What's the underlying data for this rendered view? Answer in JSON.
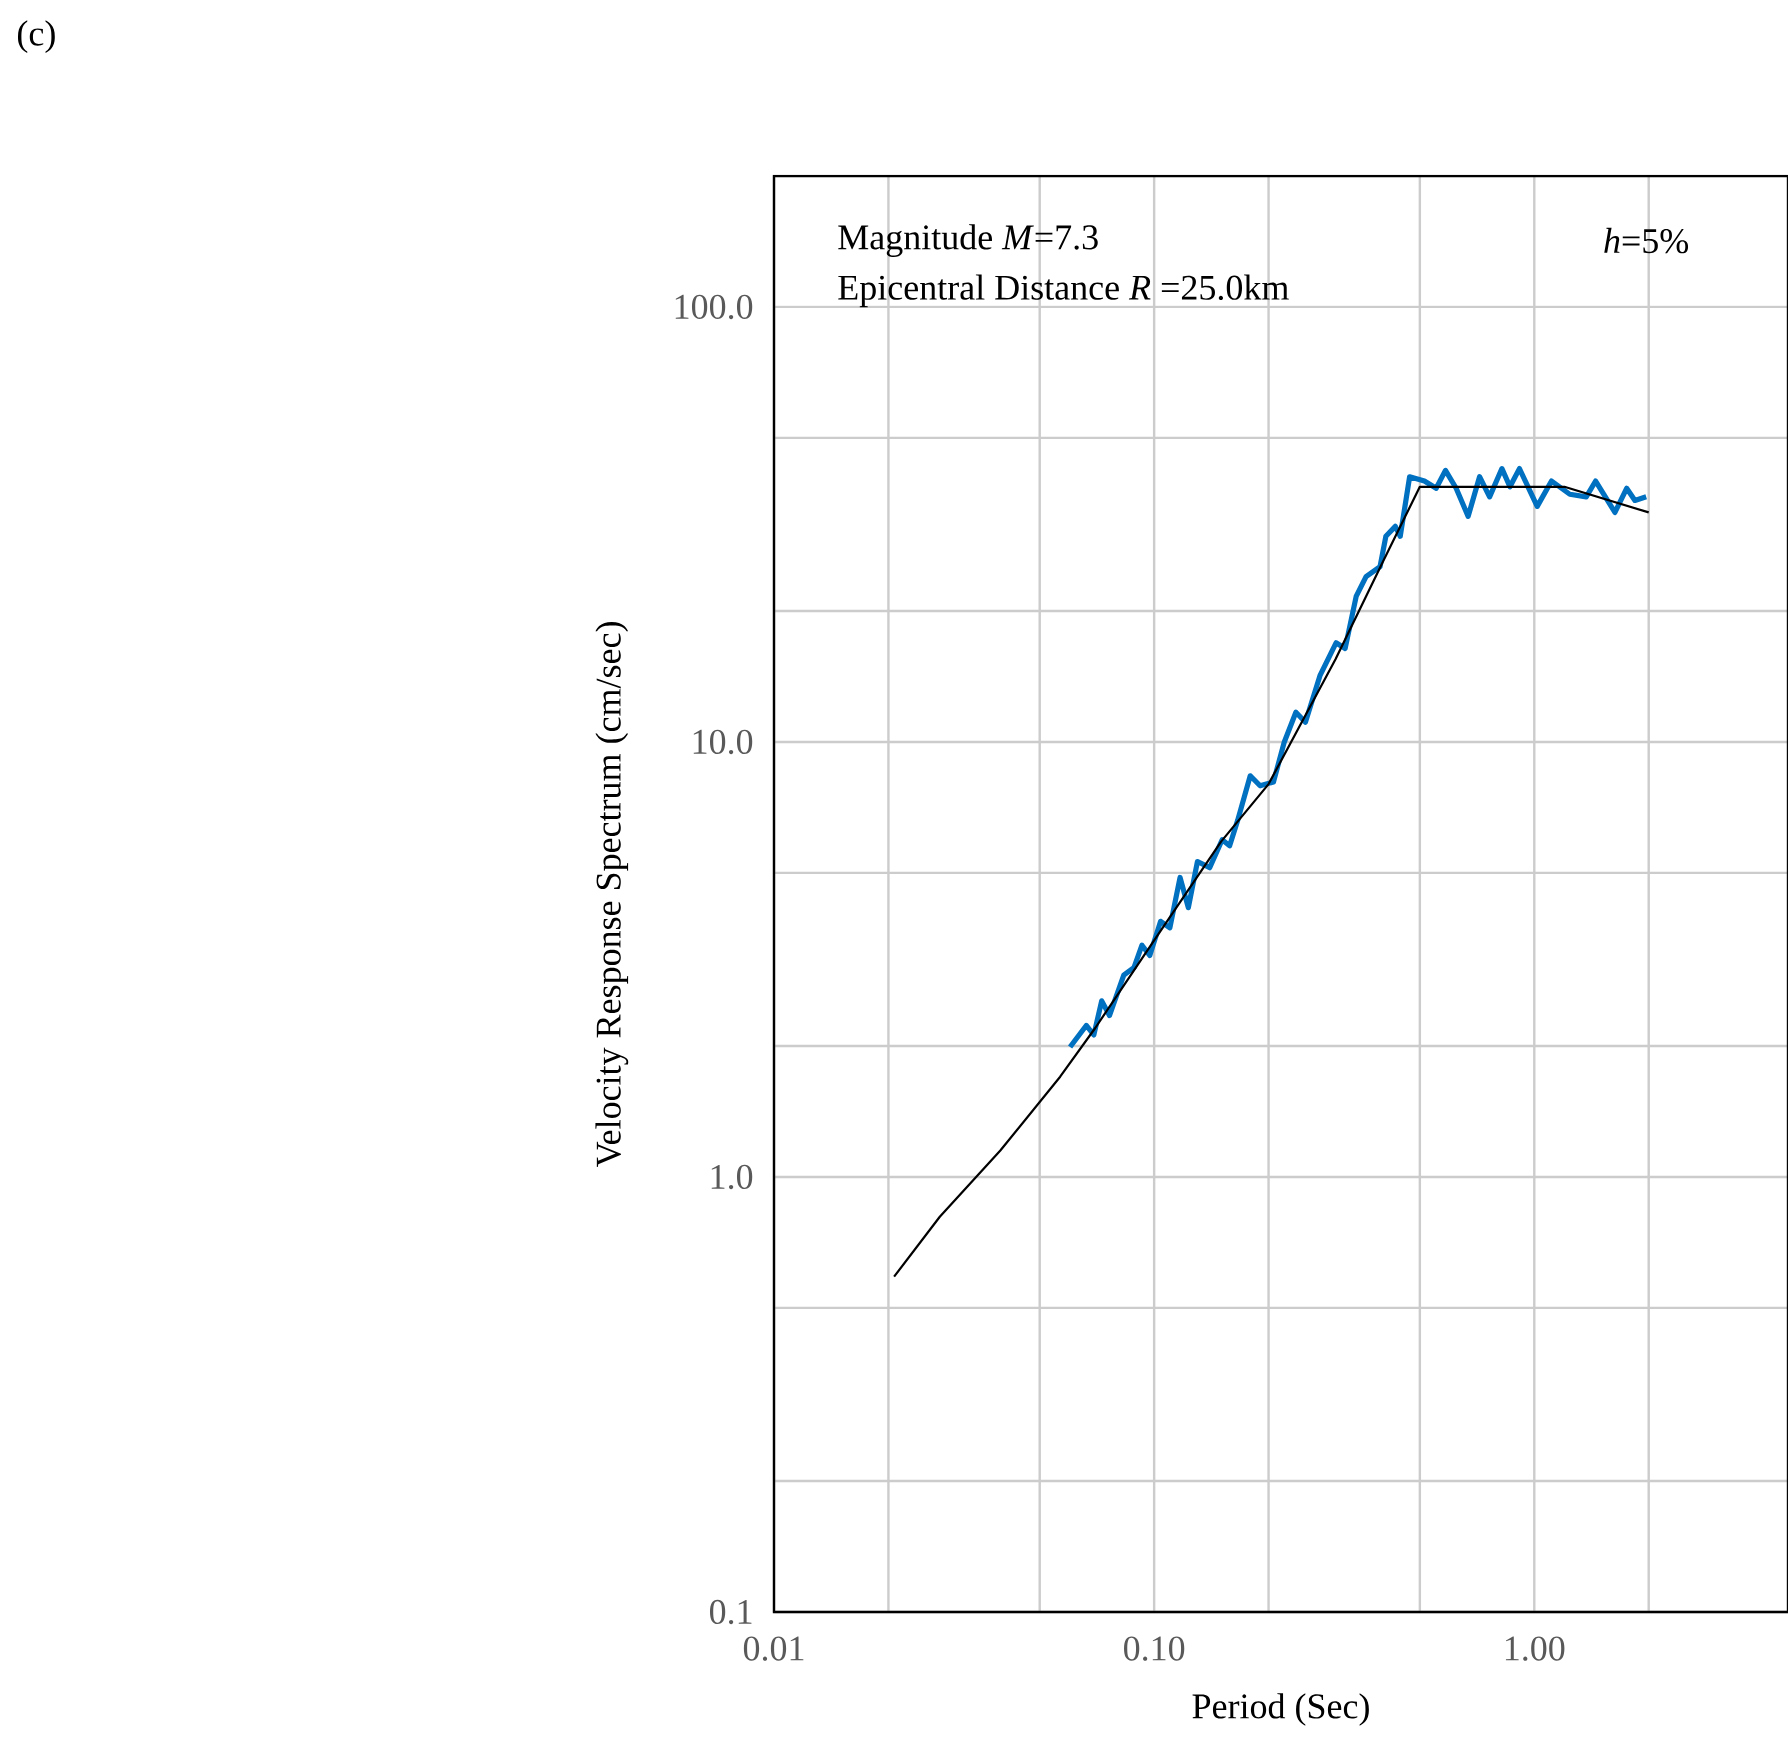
{
  "chart_data": {
    "type": "line",
    "xlabel": "Period (Sec)",
    "ylabel": "Velocity  Response Spectrum (cm/sec)",
    "log": "xy",
    "grid": true,
    "marker": "none",
    "xlim": [
      0.01,
      4.65
    ],
    "ylim": [
      0.1,
      200
    ],
    "xticks": [
      {
        "value": 0.01,
        "label": "0.01"
      },
      {
        "value": 0.02,
        "label": null
      },
      {
        "value": 0.05,
        "label": null
      },
      {
        "value": 0.1,
        "label": "0.10"
      },
      {
        "value": 0.2,
        "label": null
      },
      {
        "value": 0.5,
        "label": null
      },
      {
        "value": 1,
        "label": "1.00"
      },
      {
        "value": 2,
        "label": null
      }
    ],
    "yticks": [
      {
        "value": 0.1,
        "label": "0.1"
      },
      {
        "value": 0.2,
        "label": null
      },
      {
        "value": 0.5,
        "label": null
      },
      {
        "value": 1,
        "label": "1.0"
      },
      {
        "value": 2,
        "label": null
      },
      {
        "value": 5,
        "label": null
      },
      {
        "value": 10,
        "label": "10.0"
      },
      {
        "value": 20,
        "label": null
      },
      {
        "value": 50,
        "label": null
      },
      {
        "value": 100,
        "label": "100.0"
      }
    ],
    "annotations": [
      "(c)",
      "Magnitude  *M*=7.3",
      "Epicentral Distance *R* =25.0km",
      "*h*=5%"
    ],
    "series": [
      {
        "color": "#0070c0",
        "x": [
          0.0601,
          0.0663,
          0.0694,
          0.0728,
          0.0763,
          0.0832,
          0.0885,
          0.0929,
          0.0974,
          0.104,
          0.11,
          0.117,
          0.123,
          0.13,
          0.14,
          0.151,
          0.158,
          0.166,
          0.179,
          0.19,
          0.206,
          0.22,
          0.236,
          0.25,
          0.273,
          0.301,
          0.318,
          0.34,
          0.361,
          0.393,
          0.407,
          0.431,
          0.444,
          0.47,
          0.514,
          0.552,
          0.584,
          0.623,
          0.67,
          0.718,
          0.763,
          0.822,
          0.863,
          0.914,
          1.018,
          1.11,
          1.24,
          1.37,
          1.45,
          1.63,
          1.75,
          1.84,
          1.97
        ],
        "values": [
          1.99,
          2.23,
          2.12,
          2.54,
          2.35,
          2.91,
          3.03,
          3.41,
          3.23,
          3.87,
          3.74,
          4.88,
          4.16,
          5.31,
          5.14,
          5.96,
          5.77,
          6.62,
          8.36,
          7.93,
          8.09,
          10.0,
          11.7,
          11.1,
          14.2,
          16.9,
          16.4,
          21.6,
          24.0,
          25.3,
          29.7,
          31.3,
          29.7,
          40.7,
          39.8,
          38.3,
          42.1,
          38.3,
          33.0,
          40.7,
          36.6,
          42.5,
          38.6,
          42.5,
          34.8,
          39.8,
          37.1,
          36.6,
          39.8,
          33.7,
          38.3,
          35.9,
          36.6
        ]
      },
      {
        "color": "#000000",
        "x": [
          0.0207,
          0.0273,
          0.0394,
          0.0566,
          0.07,
          0.1,
          0.15,
          0.2,
          0.3,
          0.4,
          0.5,
          1.2,
          2.0
        ],
        "values": [
          0.59,
          0.81,
          1.15,
          1.7,
          2.2,
          3.5,
          5.9,
          8.0,
          15.5,
          26,
          38.6,
          38.6,
          33.7
        ]
      }
    ]
  }
}
